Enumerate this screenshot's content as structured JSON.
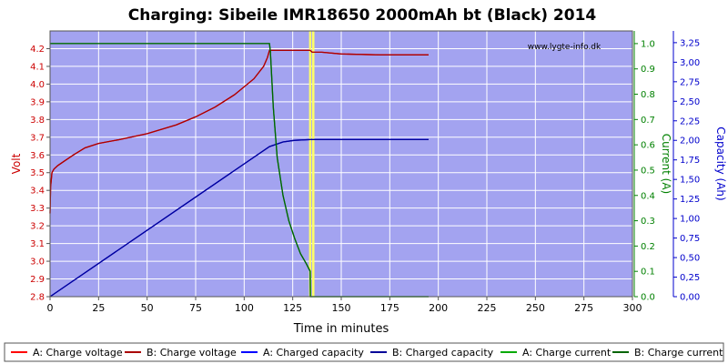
{
  "chart_data": {
    "type": "line",
    "title": "Charging: Sibeile IMR18650 2000mAh bt (Black) 2014",
    "watermark": "www.lygte-info.dk",
    "xlabel": "Time in minutes",
    "xlim": [
      0,
      300
    ],
    "x_ticks": [
      "0",
      "25",
      "50",
      "75",
      "100",
      "125",
      "150",
      "175",
      "200",
      "225",
      "250",
      "275",
      "300"
    ],
    "axes": {
      "left": {
        "label": "Volt",
        "color": "#cc0000",
        "ylim": [
          2.8,
          4.3
        ],
        "ticks": [
          "2.8",
          "2.9",
          "3.0",
          "3.1",
          "3.2",
          "3.3",
          "3.4",
          "3.5",
          "3.6",
          "3.7",
          "3.8",
          "3.9",
          "4.0",
          "4.1",
          "4.2"
        ]
      },
      "right1": {
        "label": "Current (A)",
        "color": "#008000",
        "ylim": [
          0,
          1.05
        ],
        "ticks": [
          "0.0",
          "0.1",
          "0.2",
          "0.3",
          "0.4",
          "0.5",
          "0.6",
          "0.7",
          "0.8",
          "0.9",
          "1.0"
        ]
      },
      "right2": {
        "label": "Capacity (Ah)",
        "color": "#0000cc",
        "ylim": [
          0,
          3.4
        ],
        "ticks": [
          "0,00",
          "0,25",
          "0,50",
          "0,75",
          "1,00",
          "1,25",
          "1,50",
          "1,75",
          "2,00",
          "2,25",
          "2,50",
          "2,75",
          "3,00",
          "3,25"
        ]
      }
    },
    "grid": true,
    "legend_placement": "bottom",
    "colors": {
      "plot_bg": "#a3a3f0",
      "grid": "#ffffff",
      "voltage": "#dd0000",
      "capacity": "#0000cc",
      "current": "#006400",
      "marker": "#ffff66"
    },
    "markers": [
      {
        "x": 134,
        "label": ""
      },
      {
        "x": 135.6,
        "label": ""
      }
    ],
    "series": [
      {
        "name": "A: Charge voltage",
        "axis": "left",
        "color": "#ff0000",
        "x": [
          0,
          0.3,
          1,
          2,
          4,
          8,
          12,
          18,
          25,
          35,
          50,
          65,
          75,
          85,
          95,
          105,
          110,
          112,
          113,
          115,
          125,
          134,
          135,
          140,
          150,
          170,
          195
        ],
        "y": [
          3.27,
          3.42,
          3.5,
          3.52,
          3.54,
          3.57,
          3.6,
          3.64,
          3.665,
          3.685,
          3.72,
          3.77,
          3.815,
          3.87,
          3.94,
          4.03,
          4.1,
          4.15,
          4.19,
          4.19,
          4.19,
          4.19,
          4.18,
          4.18,
          4.17,
          4.165,
          4.165
        ]
      },
      {
        "name": "B: Charge voltage",
        "axis": "left",
        "color": "#aa0000",
        "x": [
          0,
          0.3,
          1,
          2,
          4,
          8,
          12,
          18,
          25,
          35,
          50,
          65,
          75,
          85,
          95,
          105,
          110,
          112,
          113,
          115,
          125,
          134,
          135,
          140,
          150,
          170,
          195
        ],
        "y": [
          3.27,
          3.42,
          3.5,
          3.52,
          3.54,
          3.57,
          3.6,
          3.64,
          3.665,
          3.685,
          3.72,
          3.77,
          3.815,
          3.87,
          3.94,
          4.03,
          4.1,
          4.15,
          4.19,
          4.19,
          4.19,
          4.19,
          4.18,
          4.18,
          4.17,
          4.165,
          4.165
        ]
      },
      {
        "name": "A: Charged capacity",
        "axis": "right2",
        "color": "#0000ff",
        "x": [
          0,
          113,
          120,
          126,
          134,
          195
        ],
        "y": [
          0.0,
          1.92,
          1.98,
          2.0,
          2.01,
          2.01
        ]
      },
      {
        "name": "B: Charged capacity",
        "axis": "right2",
        "color": "#000099",
        "x": [
          0,
          113,
          120,
          126,
          134,
          195
        ],
        "y": [
          0.0,
          1.92,
          1.98,
          2.0,
          2.01,
          2.01
        ]
      },
      {
        "name": "A: Charge current",
        "axis": "right1",
        "color": "#00aa00",
        "x": [
          0,
          113,
          113.5,
          115,
          117,
          120,
          123,
          126,
          129,
          132,
          134,
          134.1,
          195
        ],
        "y": [
          1.0,
          1.0,
          0.97,
          0.75,
          0.55,
          0.4,
          0.3,
          0.23,
          0.17,
          0.13,
          0.1,
          0.0,
          0.0
        ]
      },
      {
        "name": "B: Charge current",
        "axis": "right1",
        "color": "#006400",
        "x": [
          0,
          113,
          113.5,
          115,
          117,
          120,
          123,
          126,
          129,
          132,
          134,
          134.1,
          195
        ],
        "y": [
          1.0,
          1.0,
          0.97,
          0.75,
          0.55,
          0.4,
          0.3,
          0.23,
          0.17,
          0.13,
          0.1,
          0.0,
          0.0
        ]
      }
    ]
  }
}
